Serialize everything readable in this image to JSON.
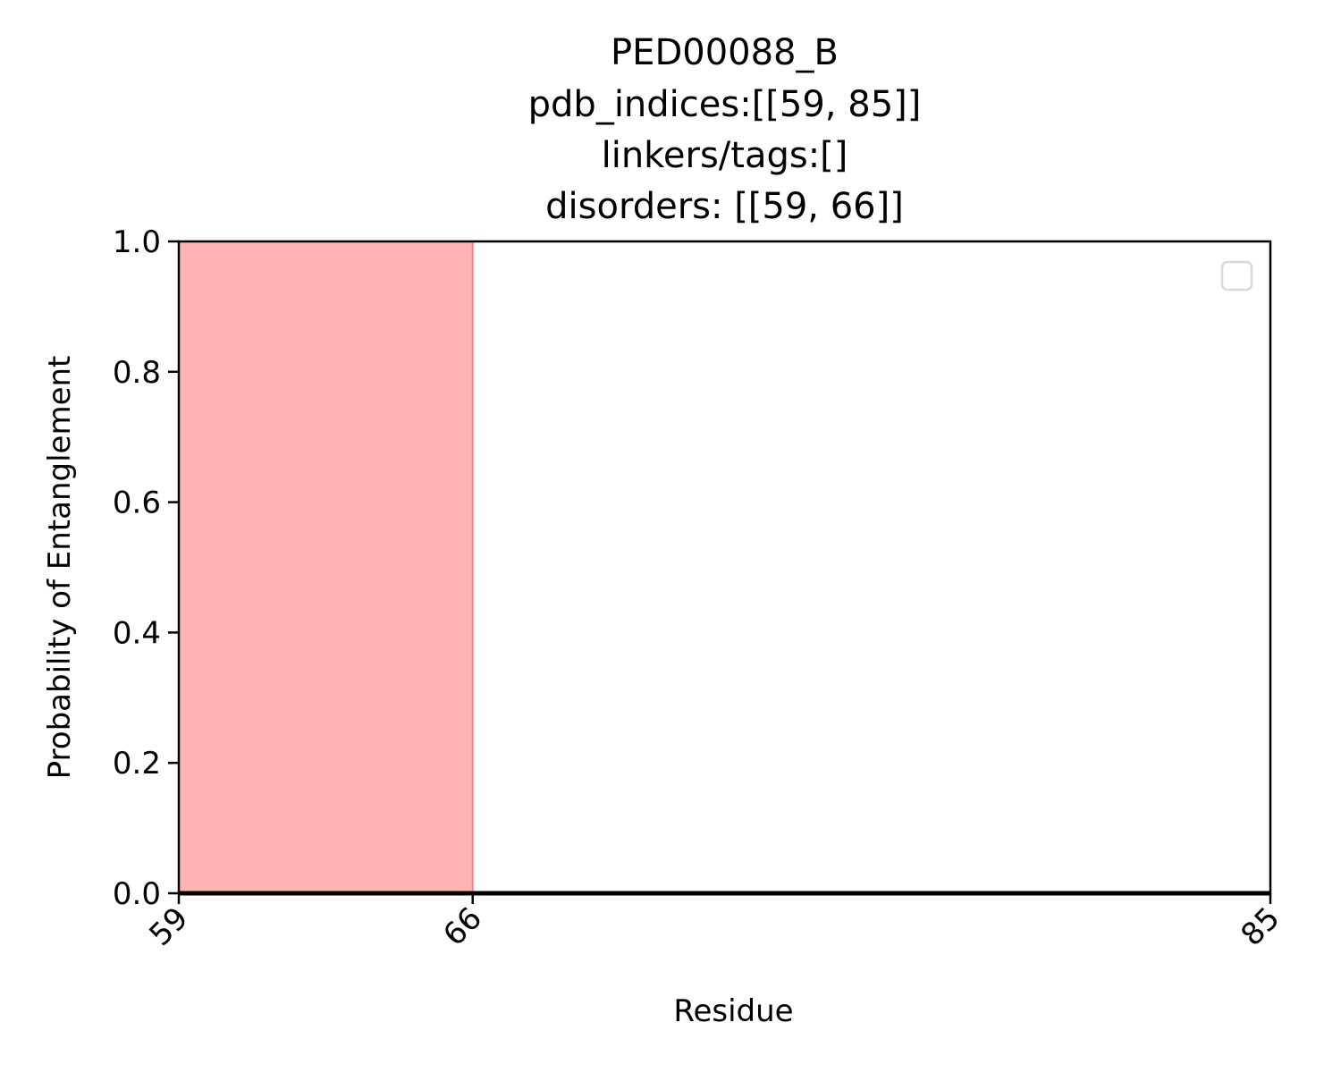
{
  "chart_data": {
    "type": "area",
    "title_lines": [
      "PED00088_B",
      "pdb_indices:[[59, 85]]",
      "linkers/tags:[]",
      "disorders: [[59, 66]]"
    ],
    "xlabel": "Residue",
    "ylabel": "Probability of Entanglement",
    "xlim": [
      59,
      85
    ],
    "ylim": [
      0,
      1.0
    ],
    "x_ticks": [
      59,
      66,
      85
    ],
    "x_tick_labels": [
      "59",
      "66",
      "85"
    ],
    "y_ticks": [
      0.0,
      0.2,
      0.4,
      0.6,
      0.8,
      1.0
    ],
    "y_tick_labels": [
      "0.0",
      "0.2",
      "0.4",
      "0.6",
      "0.8",
      "1.0"
    ],
    "series": [
      {
        "x": [
          59,
          60,
          61,
          62,
          63,
          64,
          65,
          66,
          67,
          68,
          69,
          70,
          71,
          72,
          73,
          74,
          75,
          76,
          77,
          78,
          79,
          80,
          81,
          82,
          83,
          84,
          85
        ],
        "y": [
          0,
          0,
          0,
          0,
          0,
          0,
          0,
          0,
          0,
          0,
          0,
          0,
          0,
          0,
          0,
          0,
          0,
          0,
          0,
          0,
          0,
          0,
          0,
          0,
          0,
          0,
          0
        ],
        "color": "#000000"
      }
    ],
    "shaded_regions": [
      {
        "x_start": 59,
        "x_end": 66,
        "color": "#ffb3b3",
        "edge_color": "#ff8080"
      }
    ],
    "legend": {
      "placement": "upper-right",
      "entries": []
    },
    "grid": false
  }
}
